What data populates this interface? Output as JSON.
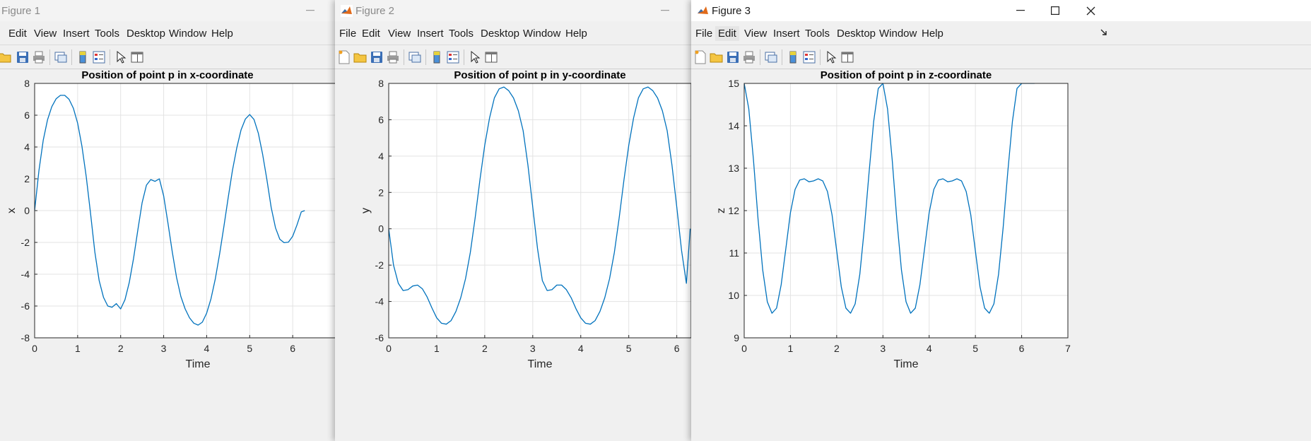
{
  "windows": [
    {
      "title": "Figure 1",
      "active": false,
      "menus": [
        "Edit",
        "View",
        "Insert",
        "Tools",
        "Desktop",
        "Window",
        "Help"
      ]
    },
    {
      "title": "Figure 2",
      "active": false,
      "menus": [
        "File",
        "Edit",
        "View",
        "Insert",
        "Tools",
        "Desktop",
        "Window",
        "Help"
      ]
    },
    {
      "title": "Figure 3",
      "active": true,
      "menus": [
        "File",
        "Edit",
        "View",
        "Insert",
        "Tools",
        "Desktop",
        "Window",
        "Help"
      ]
    }
  ],
  "colors": {
    "line": "#0072bd",
    "grid": "#e3e3e3",
    "axes_bg": "#ffffff"
  },
  "chart_data": [
    {
      "type": "line",
      "title": "Position of point p in x-coordinate",
      "xlabel": "Time",
      "ylabel": "x",
      "xlim": [
        0,
        7
      ],
      "ylim": [
        -8,
        8
      ],
      "xticks": [
        "0",
        "1",
        "2",
        "3",
        "4",
        "5",
        "6"
      ],
      "yticks": [
        "-8",
        "-6",
        "-4",
        "-2",
        "0",
        "2",
        "4",
        "6",
        "8"
      ],
      "grid": true,
      "series": [
        {
          "x": [
            0,
            0.1,
            0.2,
            0.3,
            0.4,
            0.5,
            0.6,
            0.7,
            0.8,
            0.9,
            1.0,
            1.1,
            1.2,
            1.3,
            1.4,
            1.5,
            1.6,
            1.7,
            1.8,
            1.9,
            2.0,
            2.1,
            2.2,
            2.3,
            2.4,
            2.5,
            2.6,
            2.7,
            2.8,
            2.9,
            3.0,
            3.1,
            3.2,
            3.3,
            3.4,
            3.5,
            3.6,
            3.7,
            3.8,
            3.9,
            4.0,
            4.1,
            4.2,
            4.3,
            4.4,
            4.5,
            4.6,
            4.7,
            4.8,
            4.9,
            5.0,
            5.1,
            5.2,
            5.3,
            5.4,
            5.5,
            5.6,
            5.7,
            5.8,
            5.9,
            6.0,
            6.1,
            6.2,
            6.28
          ],
          "y": [
            0.0,
            2.52,
            4.43,
            5.72,
            6.54,
            7.03,
            7.25,
            7.25,
            7.0,
            6.44,
            5.49,
            4.06,
            2.14,
            -0.17,
            -2.61,
            -4.4,
            -5.45,
            -6.0,
            -6.08,
            -5.85,
            -6.18,
            -5.61,
            -4.52,
            -3.0,
            -1.2,
            0.5,
            1.6,
            1.95,
            1.84,
            2.0,
            0.92,
            -0.8,
            -2.58,
            -4.2,
            -5.4,
            -6.18,
            -6.74,
            -7.08,
            -7.2,
            -7.02,
            -6.45,
            -5.55,
            -4.3,
            -2.74,
            -1.0,
            0.82,
            2.53,
            3.94,
            5.08,
            5.76,
            6.04,
            5.73,
            4.87,
            3.57,
            1.96,
            0.2,
            -1.08,
            -1.8,
            -2.02,
            -1.98,
            -1.62,
            -0.9,
            -0.08,
            0.0
          ]
        }
      ]
    },
    {
      "type": "line",
      "title": "Position of point p in y-coordinate",
      "xlabel": "Time",
      "ylabel": "y",
      "xlim": [
        0,
        6.3
      ],
      "ylim": [
        -6,
        8
      ],
      "xticks": [
        "0",
        "1",
        "2",
        "3",
        "4",
        "5",
        "6"
      ],
      "yticks": [
        "-6",
        "-4",
        "-2",
        "0",
        "2",
        "4",
        "6",
        "8"
      ],
      "grid": true,
      "series": [
        {
          "x": [
            0,
            0.1,
            0.2,
            0.3,
            0.4,
            0.5,
            0.6,
            0.7,
            0.8,
            0.9,
            1.0,
            1.1,
            1.2,
            1.3,
            1.4,
            1.5,
            1.6,
            1.7,
            1.8,
            1.9,
            2.0,
            2.1,
            2.2,
            2.3,
            2.4,
            2.5,
            2.6,
            2.7,
            2.8,
            2.9,
            3.0,
            3.1,
            3.2,
            3.3,
            3.4,
            3.5,
            3.6,
            3.7,
            3.8,
            3.9,
            4.0,
            4.1,
            4.2,
            4.3,
            4.4,
            4.5,
            4.6,
            4.7,
            4.8,
            4.9,
            5.0,
            5.1,
            5.2,
            5.3,
            5.4,
            5.5,
            5.6,
            5.7,
            5.8,
            5.9,
            6.0,
            6.1,
            6.2,
            6.28
          ],
          "y": [
            0.0,
            -2.0,
            -3.0,
            -3.4,
            -3.35,
            -3.15,
            -3.1,
            -3.3,
            -3.75,
            -4.35,
            -4.9,
            -5.2,
            -5.25,
            -5.05,
            -4.55,
            -3.8,
            -2.75,
            -1.3,
            0.6,
            2.7,
            4.6,
            6.1,
            7.2,
            7.7,
            7.8,
            7.6,
            7.2,
            6.5,
            5.4,
            3.5,
            1.2,
            -1.1,
            -2.85,
            -3.4,
            -3.35,
            -3.1,
            -3.1,
            -3.35,
            -3.8,
            -4.4,
            -4.9,
            -5.2,
            -5.25,
            -5.05,
            -4.55,
            -3.8,
            -2.75,
            -1.3,
            0.6,
            2.7,
            4.6,
            6.1,
            7.2,
            7.7,
            7.8,
            7.6,
            7.2,
            6.5,
            5.4,
            3.5,
            1.2,
            -1.2,
            -3.0,
            0.0
          ]
        }
      ]
    },
    {
      "type": "line",
      "title": "Position of point p in z-coordinate",
      "xlabel": "Time",
      "ylabel": "z",
      "xlim": [
        0,
        7
      ],
      "ylim": [
        9,
        15
      ],
      "xticks": [
        "0",
        "1",
        "2",
        "3",
        "4",
        "5",
        "6",
        "7"
      ],
      "yticks": [
        "9",
        "10",
        "11",
        "12",
        "13",
        "14",
        "15"
      ],
      "grid": true,
      "series": [
        {
          "x": [
            0,
            0.1,
            0.2,
            0.3,
            0.4,
            0.5,
            0.6,
            0.7,
            0.8,
            0.9,
            1.0,
            1.1,
            1.2,
            1.3,
            1.4,
            1.5,
            1.6,
            1.7,
            1.8,
            1.9,
            2.0,
            2.1,
            2.2,
            2.3,
            2.4,
            2.5,
            2.6,
            2.7,
            2.8,
            2.9,
            3.0,
            3.1,
            3.2,
            3.3,
            3.4,
            3.5,
            3.6,
            3.7,
            3.8,
            3.9,
            4.0,
            4.1,
            4.2,
            4.3,
            4.4,
            4.5,
            4.6,
            4.7,
            4.8,
            4.9,
            5.0,
            5.1,
            5.2,
            5.3,
            5.4,
            5.5,
            5.6,
            5.7,
            5.8,
            5.9,
            6.0,
            6.1,
            6.2,
            6.28
          ],
          "y": [
            15.0,
            14.4,
            13.2,
            11.8,
            10.6,
            9.85,
            9.58,
            9.7,
            10.25,
            11.1,
            11.95,
            12.5,
            12.72,
            12.75,
            12.68,
            12.7,
            12.75,
            12.7,
            12.45,
            11.9,
            11.05,
            10.2,
            9.7,
            9.58,
            9.8,
            10.5,
            11.6,
            12.9,
            14.1,
            14.88,
            15.0,
            14.4,
            13.2,
            11.8,
            10.6,
            9.85,
            9.58,
            9.7,
            10.25,
            11.1,
            11.95,
            12.5,
            12.72,
            12.75,
            12.68,
            12.7,
            12.75,
            12.7,
            12.45,
            11.9,
            11.05,
            10.2,
            9.7,
            9.58,
            9.8,
            10.5,
            11.6,
            12.9,
            14.1,
            14.88,
            15.0,
            15.0,
            15.0,
            15.0
          ]
        }
      ]
    }
  ]
}
